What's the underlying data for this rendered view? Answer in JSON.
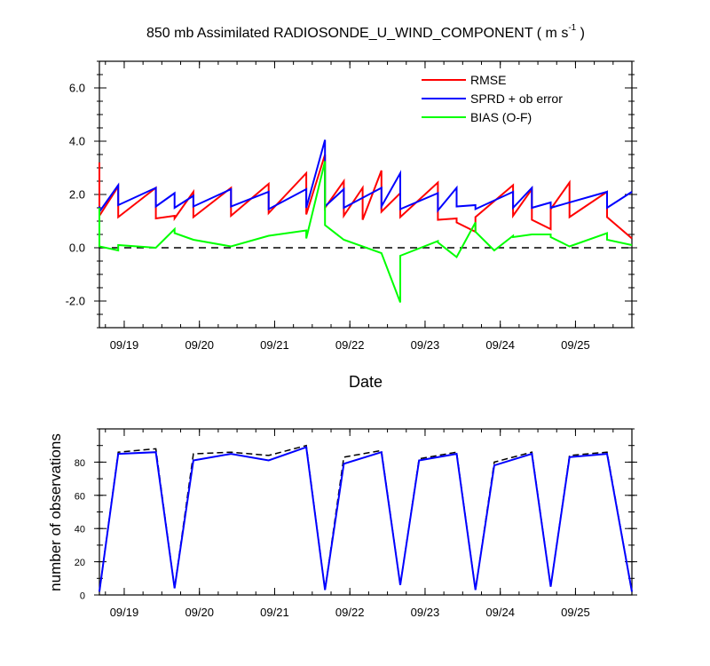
{
  "title_main": "850 mb Assimilated RADIOSONDE_U_WIND_COMPONENT ( m s",
  "title_sup": "-1",
  "title_end": " )",
  "colors": {
    "rmse": "#ff0000",
    "sprd": "#0000ff",
    "bias": "#00ff00",
    "obs_used": "#0000ff",
    "obs_possible": "#000000"
  },
  "chart_data": [
    {
      "type": "line",
      "name": "top-panel",
      "xlabel": "Date",
      "x_tick_labels": [
        "09/19",
        "09/20",
        "09/21",
        "09/22",
        "09/23",
        "09/24",
        "09/25"
      ],
      "x_tick_days": [
        1,
        2,
        3,
        4,
        5,
        6,
        7
      ],
      "xlim": [
        0.67,
        7.75
      ],
      "ylim": [
        -3,
        7
      ],
      "y_tick_labels": [
        "-2.0",
        "0.0",
        "2.0",
        "4.0",
        "6.0"
      ],
      "y_tick_values": [
        -2,
        0,
        2,
        4,
        6
      ],
      "zero_line": true,
      "legend": [
        {
          "label": "RMSE",
          "series": "rmse"
        },
        {
          "label": "SPRD + ob error",
          "series": "sprd"
        },
        {
          "label": "BIAS (O-F)",
          "series": "bias"
        }
      ],
      "series": [
        {
          "name": "rmse",
          "x": [
            0.67,
            0.67,
            0.92,
            0.92,
            1.42,
            1.42,
            1.67,
            1.67,
            1.92,
            1.92,
            2.42,
            2.42,
            2.92,
            2.92,
            3.42,
            3.42,
            3.67,
            3.67,
            3.92,
            3.92,
            4.17,
            4.17,
            4.42,
            4.42,
            4.67,
            4.67,
            5.17,
            5.17,
            5.42,
            5.42,
            5.67,
            5.67,
            6.17,
            6.17,
            6.42,
            6.42,
            6.67,
            6.67,
            6.92,
            6.92,
            7.42,
            7.42,
            7.75
          ],
          "y": [
            3.2,
            1.2,
            2.3,
            1.15,
            2.25,
            1.1,
            1.2,
            1.1,
            2.1,
            1.15,
            2.25,
            1.2,
            2.4,
            1.3,
            2.8,
            1.25,
            3.5,
            1.5,
            2.5,
            1.2,
            2.25,
            1.05,
            2.9,
            1.35,
            2.05,
            1.15,
            2.45,
            1.05,
            1.1,
            0.95,
            0.6,
            1.15,
            2.35,
            1.2,
            2.2,
            1.05,
            0.7,
            1.45,
            2.45,
            1.15,
            2.1,
            1.15,
            0.35
          ]
        },
        {
          "name": "sprd",
          "x": [
            0.67,
            0.67,
            0.92,
            0.92,
            1.42,
            1.42,
            1.67,
            1.67,
            1.92,
            1.92,
            2.42,
            2.42,
            2.92,
            2.92,
            3.42,
            3.42,
            3.67,
            3.67,
            3.92,
            3.92,
            4.42,
            4.42,
            4.67,
            4.67,
            5.17,
            5.17,
            5.42,
            5.42,
            5.67,
            5.67,
            6.17,
            6.17,
            6.42,
            6.42,
            6.67,
            6.67,
            7.42,
            7.42,
            7.75
          ],
          "y": [
            1.55,
            1.35,
            2.35,
            1.6,
            2.25,
            1.55,
            2.05,
            1.5,
            1.95,
            1.55,
            2.2,
            1.55,
            2.1,
            1.45,
            2.2,
            1.5,
            4.05,
            1.55,
            2.2,
            1.5,
            2.25,
            1.55,
            2.8,
            1.45,
            2.05,
            1.4,
            2.25,
            1.55,
            1.6,
            1.45,
            2.1,
            1.5,
            2.25,
            1.5,
            1.7,
            1.5,
            2.1,
            1.5,
            2.1
          ]
        },
        {
          "name": "bias",
          "x": [
            0.67,
            0.67,
            0.92,
            0.92,
            1.42,
            1.67,
            1.67,
            1.92,
            2.42,
            2.92,
            3.42,
            3.42,
            3.67,
            3.67,
            3.92,
            4.42,
            4.42,
            4.67,
            4.67,
            4.67,
            5.17,
            5.17,
            5.42,
            5.67,
            5.67,
            5.92,
            6.17,
            6.17,
            6.42,
            6.67,
            6.67,
            6.92,
            7.42,
            7.42,
            7.75
          ],
          "y": [
            1.5,
            0.05,
            -0.1,
            0.1,
            0.0,
            0.7,
            0.55,
            0.3,
            0.05,
            0.45,
            0.65,
            0.35,
            3.25,
            0.85,
            0.3,
            -0.2,
            -0.2,
            -2.05,
            -0.3,
            -0.3,
            0.25,
            0.2,
            -0.35,
            0.95,
            0.6,
            -0.1,
            0.45,
            0.4,
            0.5,
            0.5,
            0.4,
            0.05,
            0.55,
            0.3,
            0.1
          ]
        }
      ]
    },
    {
      "type": "line",
      "name": "bottom-panel",
      "ylabel": "number of observations",
      "x_tick_labels": [
        "09/19",
        "09/20",
        "09/21",
        "09/22",
        "09/23",
        "09/24",
        "09/25"
      ],
      "x_tick_days": [
        1,
        2,
        3,
        4,
        5,
        6,
        7
      ],
      "xlim": [
        0.67,
        7.75
      ],
      "ylim": [
        0,
        100
      ],
      "y_tick_labels": [
        "0",
        "20",
        "40",
        "60",
        "80"
      ],
      "y_tick_values": [
        0,
        20,
        40,
        60,
        80
      ],
      "series": [
        {
          "name": "obs_possible",
          "dashed": true,
          "x": [
            0.67,
            0.92,
            1.42,
            1.67,
            1.92,
            2.42,
            2.92,
            3.42,
            3.67,
            3.92,
            4.42,
            4.67,
            4.92,
            5.42,
            5.67,
            5.92,
            6.42,
            6.67,
            6.92,
            7.42,
            7.75
          ],
          "y": [
            2,
            86,
            88,
            4,
            85,
            86,
            84,
            90,
            3,
            83,
            87,
            6,
            82,
            86,
            3,
            80,
            86,
            5,
            84,
            86,
            2
          ]
        },
        {
          "name": "obs_used",
          "x": [
            0.67,
            0.92,
            1.42,
            1.67,
            1.92,
            2.42,
            2.92,
            3.42,
            3.67,
            3.92,
            4.42,
            4.67,
            4.92,
            5.42,
            5.67,
            5.92,
            6.42,
            6.67,
            6.92,
            7.42,
            7.75
          ],
          "y": [
            2,
            85,
            86,
            4,
            81,
            85,
            81,
            89,
            3,
            79,
            86,
            6,
            81,
            85,
            3,
            78,
            85,
            5,
            83,
            85,
            2
          ]
        }
      ]
    }
  ]
}
